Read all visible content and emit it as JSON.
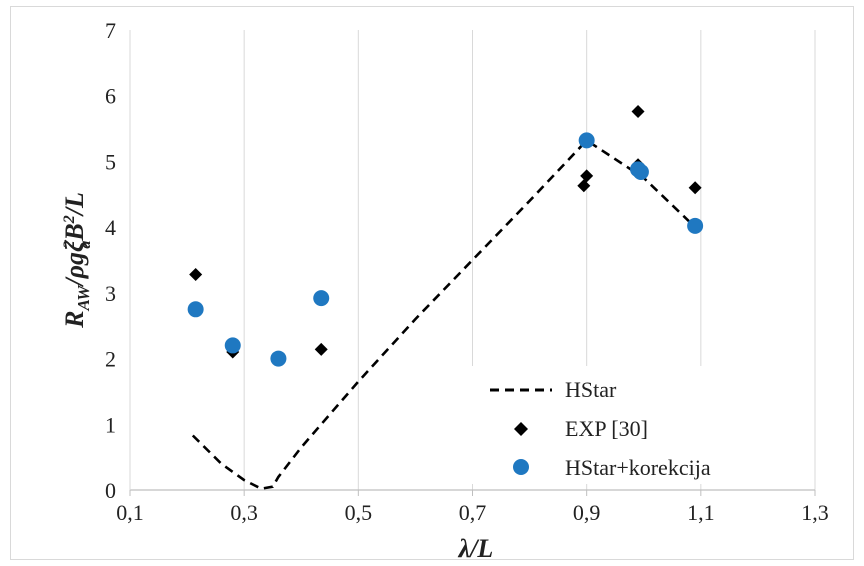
{
  "chart_data": {
    "type": "scatter",
    "title": "",
    "xlabel": "λ/L",
    "ylabel_parts": {
      "r": "R",
      "r_sub": "AW",
      "mid": "/ρgζ",
      "zeta_sup": "2",
      "zeta_sub": "a",
      "b": "B",
      "b_sup": "2",
      "tail": "/L"
    },
    "xlim": [
      0.1,
      1.3
    ],
    "ylim": [
      0,
      7
    ],
    "x_ticks": [
      0.1,
      0.3,
      0.5,
      0.7,
      0.9,
      1.1,
      1.3
    ],
    "x_tick_labels": [
      "0,1",
      "0,3",
      "0,5",
      "0,7",
      "0,9",
      "1,1",
      "1,3"
    ],
    "y_ticks": [
      0,
      1,
      2,
      3,
      4,
      5,
      6,
      7
    ],
    "y_tick_labels": [
      "0",
      "1",
      "2",
      "3",
      "4",
      "5",
      "6",
      "7"
    ],
    "grid": "vertical",
    "legend_position": "bottom-right",
    "colors": {
      "hstar": "#000000",
      "exp": "#000000",
      "corr": "#1f78c1",
      "grid": "#d9d9d9"
    },
    "series": [
      {
        "name": "HStar",
        "kind": "dashed-line",
        "points": [
          [
            0.21,
            0.83
          ],
          [
            0.26,
            0.4
          ],
          [
            0.3,
            0.15
          ],
          [
            0.33,
            0.02
          ],
          [
            0.35,
            0.05
          ],
          [
            0.36,
            0.2
          ],
          [
            0.4,
            0.65
          ],
          [
            0.45,
            1.15
          ],
          [
            0.5,
            1.65
          ],
          [
            0.6,
            2.6
          ],
          [
            0.7,
            3.5
          ],
          [
            0.8,
            4.4
          ],
          [
            0.9,
            5.32
          ],
          [
            1.0,
            4.75
          ],
          [
            1.09,
            4.0
          ]
        ]
      },
      {
        "name": "EXP [30]",
        "kind": "diamond",
        "points": [
          [
            0.215,
            3.28
          ],
          [
            0.28,
            2.1
          ],
          [
            0.36,
            2.0
          ],
          [
            0.435,
            2.14
          ],
          [
            0.895,
            4.63
          ],
          [
            0.9,
            4.78
          ],
          [
            0.99,
            5.76
          ],
          [
            0.99,
            4.95
          ],
          [
            0.995,
            4.84
          ],
          [
            1.09,
            4.6
          ]
        ]
      },
      {
        "name": "HStar+korekcija",
        "kind": "circle",
        "points": [
          [
            0.215,
            2.75
          ],
          [
            0.28,
            2.2
          ],
          [
            0.36,
            2.0
          ],
          [
            0.435,
            2.92
          ],
          [
            0.9,
            5.32
          ],
          [
            0.99,
            4.88
          ],
          [
            0.995,
            4.84
          ],
          [
            1.09,
            4.02
          ]
        ]
      }
    ]
  }
}
